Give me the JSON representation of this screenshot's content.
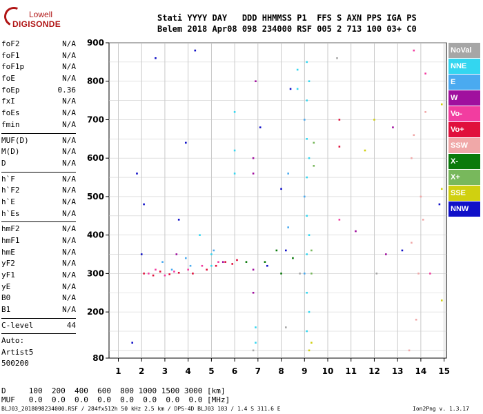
{
  "logo": {
    "line1": "Lowell",
    "line2": "DIGISONDE"
  },
  "header": {
    "line1": "Stati YYYY DAY   DDD HHMMSS P1  FFS S AXN PPS IGA PS",
    "line2": "Belem 2018 Apr08 098 234000 RSF 005 2 713 100 03+ C0"
  },
  "params_groups": [
    [
      {
        "label": "foF2",
        "value": "N/A"
      },
      {
        "label": "foF1",
        "value": "N/A"
      },
      {
        "label": "foF1p",
        "value": "N/A"
      },
      {
        "label": "foE",
        "value": "N/A"
      },
      {
        "label": "foEp",
        "value": "0.36"
      },
      {
        "label": "fxI",
        "value": "N/A"
      },
      {
        "label": "foEs",
        "value": "N/A"
      },
      {
        "label": "fmin",
        "value": "N/A"
      }
    ],
    [
      {
        "label": "MUF(D)",
        "value": "N/A"
      },
      {
        "label": "M(D)",
        "value": "N/A"
      },
      {
        "label": "D",
        "value": "N/A"
      }
    ],
    [
      {
        "label": "h`F",
        "value": "N/A"
      },
      {
        "label": "h`F2",
        "value": "N/A"
      },
      {
        "label": "h`E",
        "value": "N/A"
      },
      {
        "label": "h`Es",
        "value": "N/A"
      }
    ],
    [
      {
        "label": "hmF2",
        "value": "N/A"
      },
      {
        "label": "hmF1",
        "value": "N/A"
      },
      {
        "label": "hmE",
        "value": "N/A"
      },
      {
        "label": "yF2",
        "value": "N/A"
      },
      {
        "label": "yF1",
        "value": "N/A"
      },
      {
        "label": "yE",
        "value": "N/A"
      },
      {
        "label": "B0",
        "value": "N/A"
      },
      {
        "label": "B1",
        "value": "N/A"
      }
    ],
    [
      {
        "label": "C-level",
        "value": "44"
      }
    ]
  ],
  "auto_lines": [
    "Auto:",
    "Artist5",
    "500200"
  ],
  "legend": [
    {
      "label": "NoVal",
      "color": "#a6a6a6"
    },
    {
      "label": "NNE",
      "color": "#33d6f0"
    },
    {
      "label": "E",
      "color": "#4aaaf0"
    },
    {
      "label": "W",
      "color": "#a0109e"
    },
    {
      "label": "Vo-",
      "color": "#f23da0"
    },
    {
      "label": "Vo+",
      "color": "#e0103c"
    },
    {
      "label": "SSW",
      "color": "#f0a8a8"
    },
    {
      "label": "X-",
      "color": "#0a7a0a"
    },
    {
      "label": "X+",
      "color": "#78b85c"
    },
    {
      "label": "SSE",
      "color": "#d0d010"
    },
    {
      "label": "NNW",
      "color": "#1010c8"
    }
  ],
  "bottom": {
    "line_d": "D     100  200  400  600  800 1000 1500 3000 [km]",
    "line_muf": "MUF   0.0  0.0  0.0  0.0  0.0  0.0  0.0  0.0 [MHz]"
  },
  "footer": {
    "left": "BLJ03_2018098234000.RSF / 284fx512h 50 kHz 2.5 km / DPS-4D BLJ03 103 / 1.4 S 311.6 E",
    "right": "Ion2Png v. 1.3.17"
  },
  "chart_data": {
    "type": "scatter",
    "title": "",
    "xlabel": "",
    "ylabel": "",
    "xlim": [
      0.6,
      15.1
    ],
    "ylim": [
      80,
      900
    ],
    "x_ticks": [
      1,
      2,
      3,
      4,
      5,
      6,
      7,
      8,
      9,
      10,
      11,
      12,
      13,
      14,
      15
    ],
    "y_ticks": [
      80,
      200,
      300,
      400,
      500,
      600,
      700,
      800,
      900
    ],
    "grid": true,
    "legend_position": "right",
    "series": [
      {
        "name": "NNE",
        "points": [
          [
            9.1,
            150
          ],
          [
            9.1,
            250
          ],
          [
            9.1,
            350
          ],
          [
            9.1,
            450
          ],
          [
            9.1,
            550
          ],
          [
            9.1,
            650
          ],
          [
            9.1,
            750
          ],
          [
            9.1,
            850
          ],
          [
            9.2,
            200
          ],
          [
            9.2,
            400
          ],
          [
            9.2,
            600
          ],
          [
            9.2,
            800
          ],
          [
            6.9,
            120
          ],
          [
            6.9,
            160
          ],
          [
            5.0,
            320
          ],
          [
            5.0,
            350
          ],
          [
            4.5,
            400
          ],
          [
            6.0,
            560
          ],
          [
            6.0,
            620
          ],
          [
            6.0,
            720
          ],
          [
            8.7,
            780
          ],
          [
            8.7,
            830
          ]
        ]
      },
      {
        "name": "E",
        "points": [
          [
            9.0,
            300
          ],
          [
            9.0,
            500
          ],
          [
            9.0,
            700
          ],
          [
            2.9,
            330
          ],
          [
            3.3,
            310
          ],
          [
            3.9,
            340
          ],
          [
            4.1,
            320
          ],
          [
            5.1,
            360
          ],
          [
            8.3,
            420
          ],
          [
            8.3,
            560
          ]
        ]
      },
      {
        "name": "W",
        "points": [
          [
            6.8,
            250
          ],
          [
            6.8,
            310
          ],
          [
            6.8,
            560
          ],
          [
            6.8,
            600
          ],
          [
            6.9,
            800
          ],
          [
            3.5,
            350
          ],
          [
            5.5,
            330
          ],
          [
            11.2,
            410
          ],
          [
            12.5,
            350
          ],
          [
            12.8,
            680
          ]
        ]
      },
      {
        "name": "Vo-",
        "points": [
          [
            2.3,
            300
          ],
          [
            2.6,
            310
          ],
          [
            3.0,
            295
          ],
          [
            3.4,
            305
          ],
          [
            4.0,
            310
          ],
          [
            4.6,
            320
          ],
          [
            5.3,
            330
          ],
          [
            10.5,
            440
          ],
          [
            13.7,
            880
          ],
          [
            14.2,
            820
          ],
          [
            14.4,
            300
          ]
        ]
      },
      {
        "name": "Vo+",
        "points": [
          [
            2.1,
            300
          ],
          [
            2.5,
            295
          ],
          [
            2.8,
            305
          ],
          [
            3.2,
            298
          ],
          [
            3.6,
            302
          ],
          [
            4.2,
            300
          ],
          [
            4.8,
            310
          ],
          [
            5.2,
            320
          ],
          [
            5.6,
            330
          ],
          [
            5.9,
            325
          ],
          [
            6.1,
            335
          ],
          [
            10.5,
            630
          ],
          [
            10.5,
            700
          ]
        ]
      },
      {
        "name": "SSW",
        "points": [
          [
            13.5,
            100
          ],
          [
            13.6,
            380
          ],
          [
            13.6,
            600
          ],
          [
            13.7,
            660
          ],
          [
            13.8,
            180
          ],
          [
            13.9,
            300
          ],
          [
            14.0,
            500
          ],
          [
            14.1,
            440
          ],
          [
            14.2,
            720
          ]
        ]
      },
      {
        "name": "X-",
        "points": [
          [
            6.5,
            330
          ],
          [
            7.3,
            330
          ],
          [
            7.8,
            360
          ],
          [
            8.0,
            300
          ],
          [
            8.5,
            340
          ]
        ]
      },
      {
        "name": "X+",
        "points": [
          [
            9.3,
            360
          ],
          [
            9.3,
            300
          ],
          [
            9.4,
            580
          ],
          [
            9.4,
            640
          ]
        ]
      },
      {
        "name": "SSE",
        "points": [
          [
            9.2,
            100
          ],
          [
            9.3,
            120
          ],
          [
            11.6,
            620
          ],
          [
            12.0,
            700
          ],
          [
            14.9,
            230
          ],
          [
            14.9,
            520
          ],
          [
            14.9,
            740
          ]
        ]
      },
      {
        "name": "NNW",
        "points": [
          [
            1.6,
            120
          ],
          [
            1.8,
            560
          ],
          [
            2.0,
            350
          ],
          [
            2.1,
            480
          ],
          [
            2.6,
            860
          ],
          [
            3.6,
            440
          ],
          [
            3.9,
            640
          ],
          [
            4.3,
            880
          ],
          [
            7.1,
            680
          ],
          [
            7.4,
            320
          ],
          [
            8.0,
            520
          ],
          [
            8.2,
            360
          ],
          [
            8.4,
            780
          ],
          [
            13.2,
            360
          ],
          [
            14.8,
            480
          ]
        ]
      },
      {
        "name": "NoVal",
        "points": [
          [
            6.8,
            100
          ],
          [
            8.2,
            160
          ],
          [
            8.8,
            300
          ],
          [
            10.4,
            860
          ],
          [
            12.1,
            300
          ]
        ]
      }
    ]
  }
}
